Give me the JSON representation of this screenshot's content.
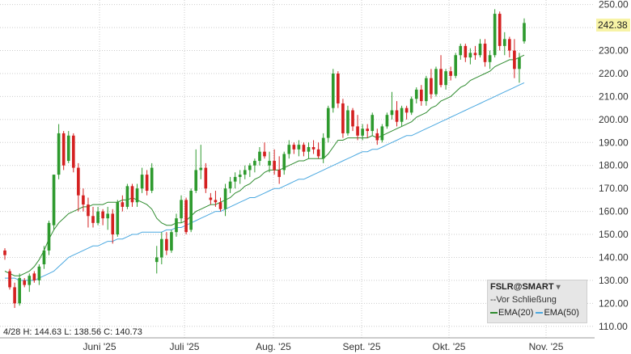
{
  "chart_data": {
    "type": "candlestick",
    "symbol": "FSLR@SMART",
    "session_note": "--Vor Schließung",
    "ohlc_readout": "4/28 H: 144.63 L: 138.56 C: 140.73",
    "last_price": "242.38",
    "ylim": [
      105,
      252
    ],
    "y_ticks": [
      110,
      120,
      130,
      140,
      150,
      160,
      170,
      180,
      190,
      200,
      210,
      220,
      230,
      240,
      250
    ],
    "y_tick_labels": [
      "110.00",
      "120.00",
      "130.00",
      "140.00",
      "150.00",
      "160.00",
      "170.00",
      "180.00",
      "190.00",
      "200.00",
      "210.00",
      "220.00",
      "230.00",
      "240.00",
      "250.00"
    ],
    "x_labels": [
      "Juni '25",
      "Juli '25",
      "Aug. '25",
      "Sept. '25",
      "Okt. '25",
      "Nov. '25"
    ],
    "grid": true,
    "legend": {
      "position": "bottom-right",
      "entries": [
        {
          "name": "EMA(20)",
          "color": "#2e8b2e"
        },
        {
          "name": "EMA(50)",
          "color": "#4aa8e0"
        }
      ]
    },
    "colors": {
      "up": "#2e9a2e",
      "down": "#d42020",
      "ema20": "#2e8b2e",
      "ema50": "#4aa8e0",
      "grid": "#cccccc"
    },
    "candles": [
      [
        143,
        144,
        139,
        141
      ],
      [
        134,
        135,
        126,
        127
      ],
      [
        127,
        129,
        118,
        120
      ],
      [
        120,
        133,
        119,
        131
      ],
      [
        130,
        131,
        127,
        128
      ],
      [
        128,
        133,
        125,
        132
      ],
      [
        133,
        134,
        129,
        130
      ],
      [
        130,
        137,
        128,
        136
      ],
      [
        137,
        145,
        135,
        143
      ],
      [
        143,
        156,
        141,
        155
      ],
      [
        154,
        176,
        152,
        176
      ],
      [
        176,
        198,
        174,
        194
      ],
      [
        194,
        195,
        178,
        180
      ],
      [
        182,
        195,
        181,
        193
      ],
      [
        193,
        194,
        177,
        179
      ],
      [
        179,
        181,
        160,
        167
      ],
      [
        167,
        170,
        160,
        163
      ],
      [
        163,
        166,
        153,
        158
      ],
      [
        158,
        162,
        153,
        155
      ],
      [
        155,
        162,
        154,
        160
      ],
      [
        160,
        161,
        154,
        157
      ],
      [
        157,
        162,
        152,
        159
      ],
      [
        159,
        161,
        146,
        150
      ],
      [
        150,
        165,
        149,
        164
      ],
      [
        164,
        167,
        160,
        162
      ],
      [
        162,
        172,
        161,
        171
      ],
      [
        171,
        172,
        162,
        164
      ],
      [
        164,
        172,
        162,
        170
      ],
      [
        170,
        179,
        168,
        176
      ],
      [
        176,
        178,
        167,
        169
      ],
      [
        169,
        181,
        168,
        179
      ],
      [
        138,
        145,
        133,
        140
      ],
      [
        140,
        151,
        137,
        148
      ],
      [
        148,
        151,
        141,
        143
      ],
      [
        143,
        152,
        142,
        151
      ],
      [
        151,
        159,
        149,
        157
      ],
      [
        157,
        167,
        155,
        165
      ],
      [
        165,
        166,
        150,
        151
      ],
      [
        152,
        170,
        151,
        169
      ],
      [
        169,
        187,
        168,
        178
      ],
      [
        178,
        189,
        174,
        179
      ],
      [
        179,
        181,
        168,
        170
      ],
      [
        166,
        168,
        163,
        165
      ],
      [
        165,
        169,
        162,
        164
      ],
      [
        164,
        166,
        160,
        161
      ],
      [
        161,
        172,
        158,
        170
      ],
      [
        170,
        175,
        168,
        173
      ],
      [
        173,
        177,
        170,
        175
      ],
      [
        175,
        178,
        172,
        176
      ],
      [
        176,
        180,
        174,
        178
      ],
      [
        178,
        181,
        175,
        180
      ],
      [
        180,
        183,
        177,
        182
      ],
      [
        182,
        188,
        180,
        186
      ],
      [
        186,
        190,
        183,
        184
      ],
      [
        180,
        186,
        177,
        182
      ],
      [
        182,
        187,
        176,
        178
      ],
      [
        178,
        184,
        172,
        175
      ],
      [
        178,
        186,
        176,
        185
      ],
      [
        185,
        191,
        183,
        189
      ],
      [
        189,
        190,
        185,
        187
      ],
      [
        187,
        191,
        184,
        189
      ],
      [
        189,
        190,
        184,
        186
      ],
      [
        186,
        190,
        183,
        188
      ],
      [
        188,
        191,
        185,
        187
      ],
      [
        187,
        190,
        183,
        184
      ],
      [
        183,
        194,
        181,
        192
      ],
      [
        192,
        206,
        190,
        205
      ],
      [
        205,
        222,
        203,
        220
      ],
      [
        220,
        221,
        205,
        207
      ],
      [
        207,
        209,
        192,
        194
      ],
      [
        194,
        206,
        193,
        204
      ],
      [
        204,
        205,
        195,
        197
      ],
      [
        197,
        202,
        191,
        193
      ],
      [
        193,
        198,
        191,
        196
      ],
      [
        196,
        198,
        192,
        195
      ],
      [
        195,
        203,
        193,
        202
      ],
      [
        194,
        196,
        189,
        191
      ],
      [
        191,
        198,
        190,
        197
      ],
      [
        197,
        203,
        196,
        202
      ],
      [
        202,
        212,
        200,
        204
      ],
      [
        204,
        208,
        197,
        199
      ],
      [
        199,
        206,
        197,
        205
      ],
      [
        205,
        206,
        200,
        203
      ],
      [
        203,
        210,
        202,
        209
      ],
      [
        209,
        214,
        207,
        213
      ],
      [
        213,
        215,
        206,
        208
      ],
      [
        208,
        219,
        206,
        218
      ],
      [
        218,
        222,
        209,
        211
      ],
      [
        211,
        223,
        210,
        222
      ],
      [
        222,
        228,
        214,
        215
      ],
      [
        215,
        222,
        213,
        221
      ],
      [
        221,
        223,
        217,
        219
      ],
      [
        219,
        229,
        218,
        228
      ],
      [
        228,
        233,
        226,
        232
      ],
      [
        232,
        233,
        225,
        227
      ],
      [
        227,
        231,
        224,
        229
      ],
      [
        229,
        232,
        226,
        228
      ],
      [
        228,
        235,
        227,
        233
      ],
      [
        233,
        235,
        223,
        225
      ],
      [
        225,
        230,
        222,
        228
      ],
      [
        228,
        248,
        227,
        246
      ],
      [
        246,
        247,
        230,
        232
      ],
      [
        232,
        238,
        228,
        235
      ],
      [
        235,
        236,
        227,
        230
      ],
      [
        230,
        235,
        218,
        222
      ],
      [
        222,
        229,
        216,
        227
      ],
      [
        234,
        244,
        233,
        242
      ]
    ],
    "ema20": [
      134,
      133,
      132,
      132,
      133,
      134,
      136,
      139,
      143,
      148,
      152,
      155,
      157,
      159,
      160,
      161,
      162,
      162,
      163,
      163,
      163,
      164,
      164,
      164,
      165,
      165,
      166,
      165,
      164,
      163,
      161,
      157,
      155,
      154,
      154,
      155,
      155,
      156,
      158,
      160,
      161,
      162,
      163,
      163,
      164,
      165,
      166,
      168,
      169,
      171,
      172,
      174,
      175,
      177,
      178,
      178,
      178,
      179,
      180,
      181,
      182,
      182,
      183,
      183,
      183,
      183,
      185,
      188,
      191,
      191,
      192,
      192,
      192,
      192,
      192,
      193,
      192,
      193,
      194,
      195,
      196,
      197,
      198,
      199,
      201,
      202,
      203,
      205,
      206,
      208,
      209,
      210,
      212,
      214,
      215,
      217,
      218,
      219,
      220,
      221,
      223,
      224,
      225,
      226,
      226,
      227,
      228
    ],
    "ema50": [
      131,
      131,
      131,
      130,
      130,
      130,
      130,
      131,
      132,
      133,
      134,
      136,
      138,
      140,
      141,
      142,
      143,
      144,
      145,
      145,
      146,
      147,
      147,
      148,
      148,
      149,
      150,
      150,
      151,
      151,
      151,
      151,
      151,
      152,
      152,
      153,
      153,
      154,
      155,
      156,
      157,
      158,
      159,
      160,
      160,
      161,
      162,
      163,
      164,
      165,
      166,
      166,
      167,
      168,
      169,
      170,
      170,
      171,
      172,
      173,
      174,
      174,
      175,
      176,
      177,
      178,
      179,
      180,
      181,
      182,
      183,
      184,
      185,
      186,
      186,
      187,
      187,
      188,
      189,
      190,
      191,
      192,
      193,
      193,
      194,
      195,
      196,
      197,
      198,
      199,
      200,
      201,
      202,
      203,
      204,
      205,
      206,
      207,
      208,
      209,
      210,
      211,
      212,
      213,
      214,
      215,
      216
    ]
  }
}
